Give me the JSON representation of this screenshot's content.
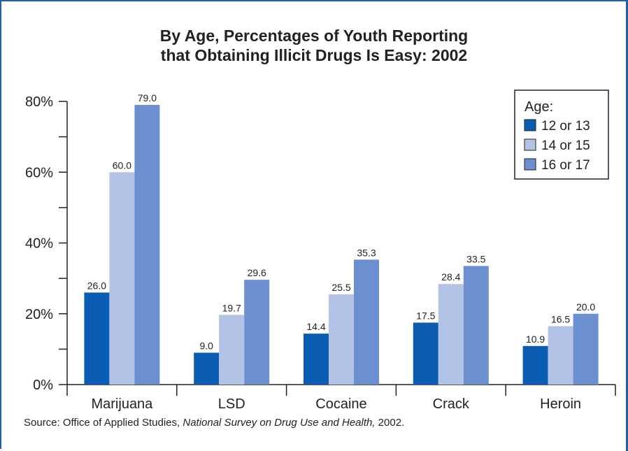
{
  "title_line1": "By Age, Percentages of Youth Reporting",
  "title_line2": "that Obtaining Illicit Drugs Is Easy:  2002",
  "source": {
    "prefix": "Source:  Office of Applied Studies, ",
    "italic": "National Survey on Drug Use and Health,",
    "suffix": " 2002."
  },
  "chart_data": {
    "type": "bar",
    "categories": [
      "Marijuana",
      "LSD",
      "Cocaine",
      "Crack",
      "Heroin"
    ],
    "series": [
      {
        "name": "12 or 13",
        "color": "#0a5db3",
        "values": [
          26.0,
          9.0,
          14.4,
          17.5,
          10.9
        ]
      },
      {
        "name": "14 or 15",
        "color": "#b3c3e6",
        "values": [
          60.0,
          19.7,
          25.5,
          28.4,
          16.5
        ]
      },
      {
        "name": "16 or 17",
        "color": "#6b8fcf",
        "values": [
          79.0,
          29.6,
          35.3,
          33.5,
          20.0
        ]
      }
    ],
    "value_labels": [
      [
        "26.0",
        "9.0",
        "14.4",
        "17.5",
        "10.9"
      ],
      [
        "60.0",
        "19.7",
        "25.5",
        "28.4",
        "16.5"
      ],
      [
        "79.0",
        "29.6",
        "35.3",
        "33.5",
        "20.0"
      ]
    ],
    "y_ticks": [
      0,
      20,
      40,
      60,
      80
    ],
    "y_tick_labels": [
      "0%",
      "20%",
      "40%",
      "60%",
      "80%"
    ],
    "ylim": [
      0,
      80
    ],
    "legend_title": "Age:",
    "legend_position": "top-right",
    "grid": false
  }
}
